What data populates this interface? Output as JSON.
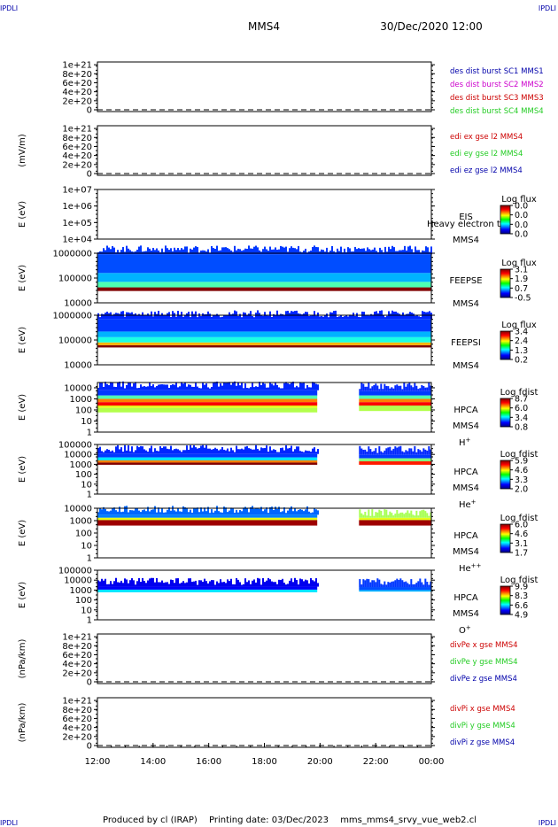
{
  "header": {
    "corner_tl": "IPDLI",
    "corner_tr": "IPDLI",
    "corner_bl": "IPDLI",
    "corner_br": "IPDLI",
    "spacecraft": "MMS4",
    "datetime": "30/Dec/2020 12:00"
  },
  "footer": {
    "producer": "Produced by cl (IRAP)",
    "print_date": "Printing date: 03/Dec/2023",
    "script": "mms_mms4_srvy_vue_web2.cl"
  },
  "time_axis": {
    "ticks": [
      "12:00",
      "14:00",
      "16:00",
      "18:00",
      "20:00",
      "22:00",
      "00:00"
    ],
    "hours": [
      12,
      14,
      16,
      18,
      20,
      22,
      24
    ],
    "range_hours": [
      12,
      24
    ]
  },
  "colors": {
    "red": "#cc0000",
    "magenta": "#cc00cc",
    "green": "#22cc22",
    "blue": "#0000aa",
    "label": "#000000"
  },
  "chart_data": [
    {
      "id": "p1",
      "type": "line",
      "ylabel": "",
      "yticks": [
        "1e+21",
        "8e+20",
        "6e+20",
        "4e+20",
        "2e+20",
        "0"
      ],
      "ylim": [
        0,
        1.1e+21
      ],
      "log": false,
      "dashed_zero": true,
      "legend": [
        {
          "text": "des dist burst SC1 MMS1",
          "color": "#0000aa"
        },
        {
          "text": "des dist burst SC2 MMS2",
          "color": "#cc00cc"
        },
        {
          "text": "des dist burst SC3 MMS3",
          "color": "#cc0000"
        },
        {
          "text": "des dist burst SC4 MMS4",
          "color": "#22cc22"
        }
      ]
    },
    {
      "id": "p2",
      "type": "line",
      "ylabel": "(mV/m)",
      "yticks": [
        "1e+21",
        "8e+20",
        "6e+20",
        "4e+20",
        "2e+20",
        "0"
      ],
      "ylim": [
        0,
        1.1e+21
      ],
      "log": false,
      "dashed_zero": true,
      "legend": [
        {
          "text": "edi ex gse l2 MMS4",
          "color": "#cc0000"
        },
        {
          "text": "edi ey gse l2 MMS4",
          "color": "#22cc22"
        },
        {
          "text": "edi ez gse l2 MMS4",
          "color": "#0000aa"
        }
      ]
    },
    {
      "id": "p3",
      "type": "heatmap",
      "ylabel": "E (eV)",
      "yticks": [
        "1e+07",
        "1e+06",
        "1e+05",
        "1e+04"
      ],
      "ylim": [
        10000.0,
        10000000.0
      ],
      "log": true,
      "instrument": "EIS",
      "instrument_extra": "Heavy electron to",
      "spacecraft": "MMS4",
      "colorbar": {
        "title": "Log flux",
        "ticks": [
          "0.0",
          "0.0",
          "0.0",
          "0.0"
        ]
      },
      "bands": []
    },
    {
      "id": "p4",
      "type": "heatmap",
      "ylabel": "E (eV)",
      "yticks": [
        "1000000",
        "100000",
        "10000"
      ],
      "ylim": [
        10000,
        1000000
      ],
      "log": true,
      "instrument": "FEEPSE",
      "spacecraft": "MMS4",
      "colorbar": {
        "title": "Log flux",
        "ticks": [
          "3.1",
          "1.9",
          "0.7",
          "-0.5"
        ]
      },
      "bands": [
        {
          "t0": 12,
          "t1": 24,
          "e0": 30000,
          "e1": 42000,
          "level": 1.0
        },
        {
          "t0": 12,
          "t1": 24,
          "e0": 42000,
          "e1": 70000,
          "level": 0.45
        },
        {
          "t0": 12,
          "t1": 24,
          "e0": 70000,
          "e1": 160000,
          "level": 0.3
        },
        {
          "t0": 12,
          "t1": 24,
          "e0": 160000,
          "e1": 900000,
          "level": 0.2
        }
      ]
    },
    {
      "id": "p5",
      "type": "heatmap",
      "ylabel": "E (eV)",
      "yticks": [
        "1000000",
        "100000",
        "10000"
      ],
      "ylim": [
        10000,
        1000000
      ],
      "log": true,
      "instrument": "FEEPSI",
      "spacecraft": "MMS4",
      "colorbar": {
        "title": "Log flux",
        "ticks": [
          "3.4",
          "2.4",
          "1.3",
          "0.2"
        ]
      },
      "bands": [
        {
          "t0": 12,
          "t1": 24,
          "e0": 50000,
          "e1": 62000,
          "level": 1.0
        },
        {
          "t0": 12,
          "t1": 24,
          "e0": 62000,
          "e1": 80000,
          "level": 0.7
        },
        {
          "t0": 12,
          "t1": 24,
          "e0": 80000,
          "e1": 130000,
          "level": 0.4
        },
        {
          "t0": 12,
          "t1": 24,
          "e0": 130000,
          "e1": 220000,
          "level": 0.3
        },
        {
          "t0": 12,
          "t1": 24,
          "e0": 220000,
          "e1": 700000,
          "level": 0.18
        }
      ]
    },
    {
      "id": "p6",
      "type": "heatmap",
      "ylabel": "E (eV)",
      "yticks": [
        "10000",
        "1000",
        "100",
        "10",
        "1"
      ],
      "ylim": [
        1,
        30000
      ],
      "log": true,
      "instrument": "HPCA",
      "spacecraft": "MMS4",
      "species": "H+",
      "colorbar": {
        "title": "Log fdist",
        "ticks": [
          "8.7",
          "6.0",
          "3.4",
          "0.8"
        ]
      },
      "bands": [
        {
          "t0": 12,
          "t1": 19.9,
          "e0": 2000,
          "e1": 6000,
          "level": 0.18
        },
        {
          "t0": 12,
          "t1": 19.9,
          "e0": 1000,
          "e1": 2000,
          "level": 0.45
        },
        {
          "t0": 12,
          "t1": 19.9,
          "e0": 500,
          "e1": 1000,
          "level": 0.75
        },
        {
          "t0": 12,
          "t1": 19.9,
          "e0": 250,
          "e1": 500,
          "level": 0.88
        },
        {
          "t0": 12,
          "t1": 19.9,
          "e0": 150,
          "e1": 250,
          "level": 0.6
        },
        {
          "t0": 12,
          "t1": 19.9,
          "e0": 60,
          "e1": 150,
          "level": 0.55
        },
        {
          "t0": 21.4,
          "t1": 24,
          "e0": 2000,
          "e1": 5000,
          "level": 0.18
        },
        {
          "t0": 21.4,
          "t1": 24,
          "e0": 1000,
          "e1": 2000,
          "level": 0.45
        },
        {
          "t0": 21.4,
          "t1": 24,
          "e0": 500,
          "e1": 1000,
          "level": 0.75
        },
        {
          "t0": 21.4,
          "t1": 24,
          "e0": 250,
          "e1": 500,
          "level": 0.88
        },
        {
          "t0": 21.4,
          "t1": 24,
          "e0": 80,
          "e1": 250,
          "level": 0.55
        }
      ]
    },
    {
      "id": "p7",
      "type": "heatmap",
      "ylabel": "E (eV)",
      "yticks": [
        "100000",
        "10000",
        "1000",
        "100",
        "10",
        "1"
      ],
      "ylim": [
        1,
        100000
      ],
      "log": true,
      "instrument": "HPCA",
      "spacecraft": "MMS4",
      "species": "He+",
      "colorbar": {
        "title": "Log fdist",
        "ticks": [
          "5.9",
          "4.6",
          "3.3",
          "2.0"
        ]
      },
      "bands": [
        {
          "t0": 12,
          "t1": 19.9,
          "e0": 5000,
          "e1": 11000,
          "level": 0.18
        },
        {
          "t0": 12,
          "t1": 19.9,
          "e0": 2500,
          "e1": 5000,
          "level": 0.35
        },
        {
          "t0": 12,
          "t1": 19.9,
          "e0": 1500,
          "e1": 2500,
          "level": 0.75
        },
        {
          "t0": 12,
          "t1": 19.9,
          "e0": 900,
          "e1": 1500,
          "level": 1.0
        },
        {
          "t0": 21.4,
          "t1": 24,
          "e0": 4000,
          "e1": 9000,
          "level": 0.18
        },
        {
          "t0": 21.4,
          "t1": 24,
          "e0": 2000,
          "e1": 4000,
          "level": 0.5
        },
        {
          "t0": 21.4,
          "t1": 24,
          "e0": 900,
          "e1": 2000,
          "level": 0.85
        }
      ]
    },
    {
      "id": "p8",
      "type": "heatmap",
      "ylabel": "E (eV)",
      "yticks": [
        "10000",
        "1000",
        "100",
        "10",
        "1"
      ],
      "ylim": [
        1,
        10000
      ],
      "log": true,
      "instrument": "HPCA",
      "spacecraft": "MMS4",
      "species": "He++",
      "colorbar": {
        "title": "Log fdist",
        "ticks": [
          "6.0",
          "4.6",
          "3.1",
          "1.7"
        ]
      },
      "bands": [
        {
          "t0": 12,
          "t1": 19.9,
          "e0": 1700,
          "e1": 3000,
          "level": 0.25
        },
        {
          "t0": 12,
          "t1": 19.9,
          "e0": 1100,
          "e1": 1700,
          "level": 0.6
        },
        {
          "t0": 12,
          "t1": 19.9,
          "e0": 400,
          "e1": 1100,
          "level": 0.97
        },
        {
          "t0": 21.4,
          "t1": 24,
          "e0": 1100,
          "e1": 1700,
          "level": 0.6
        },
        {
          "t0": 21.4,
          "t1": 24,
          "e0": 400,
          "e1": 1100,
          "level": 0.97
        }
      ]
    },
    {
      "id": "p9",
      "type": "heatmap",
      "ylabel": "E (eV)",
      "yticks": [
        "100000",
        "10000",
        "1000",
        "100",
        "10",
        "1"
      ],
      "ylim": [
        1,
        100000
      ],
      "log": true,
      "instrument": "HPCA",
      "spacecraft": "MMS4",
      "species": "O+",
      "colorbar": {
        "title": "Log fdist",
        "ticks": [
          "9.9",
          "8.3",
          "6.6",
          "4.9"
        ]
      },
      "bands": [
        {
          "t0": 12,
          "t1": 19.9,
          "e0": 1100,
          "e1": 2200,
          "level": 0.12
        },
        {
          "t0": 12,
          "t1": 19.9,
          "e0": 600,
          "e1": 1100,
          "level": 0.35
        },
        {
          "t0": 21.4,
          "t1": 24,
          "e0": 1000,
          "e1": 2000,
          "level": 0.2
        },
        {
          "t0": 21.4,
          "t1": 24,
          "e0": 700,
          "e1": 1000,
          "level": 0.3
        }
      ]
    },
    {
      "id": "p10",
      "type": "line",
      "ylabel": "(nPa/km)",
      "yticks": [
        "1e+21",
        "8e+20",
        "6e+20",
        "4e+20",
        "2e+20",
        "0"
      ],
      "ylim": [
        0,
        1.1e+21
      ],
      "log": false,
      "dashed_zero": true,
      "legend": [
        {
          "text": "divPe x gse MMS4",
          "color": "#cc0000"
        },
        {
          "text": "divPe y gse MMS4",
          "color": "#22cc22"
        },
        {
          "text": "divPe z gse MMS4",
          "color": "#0000aa"
        }
      ]
    },
    {
      "id": "p11",
      "type": "line",
      "ylabel": "(nPa/km)",
      "yticks": [
        "1e+21",
        "8e+20",
        "6e+20",
        "4e+20",
        "2e+20",
        "0"
      ],
      "ylim": [
        0,
        1.1e+21
      ],
      "log": false,
      "dashed_zero": true,
      "legend": [
        {
          "text": "divPi x gse MMS4",
          "color": "#cc0000"
        },
        {
          "text": "divPi y gse MMS4",
          "color": "#22cc22"
        },
        {
          "text": "divPi z gse MMS4",
          "color": "#0000aa"
        }
      ]
    }
  ]
}
